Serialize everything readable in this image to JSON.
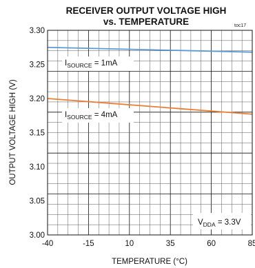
{
  "chart_data": {
    "type": "line",
    "title": "RECEIVER OUTPUT VOLTAGE HIGH",
    "subtitle": "vs. TEMPERATURE",
    "figure_code": "toc17",
    "xlabel": "TEMPERATURE (°C)",
    "ylabel": "OUTPUT VOLTAGE HIGH (V)",
    "xlim": [
      -40,
      85
    ],
    "ylim": [
      3.0,
      3.3
    ],
    "xticks": [
      "-40",
      "-15",
      "10",
      "35",
      "60",
      "85"
    ],
    "yticks": [
      "3.30",
      "3.25",
      "3.20",
      "3.15",
      "3.10",
      "3.05",
      "3.00"
    ],
    "grid": true,
    "series": [
      {
        "label_main": "I",
        "label_sub": "SOURCE",
        "label_rest": " = 1mA",
        "color": "#5b9bd5",
        "x": [
          -40,
          85
        ],
        "y": [
          3.275,
          3.268
        ]
      },
      {
        "label_main": "I",
        "label_sub": "SOURCE",
        "label_rest": " = 4mA",
        "color": "#ed7d31",
        "x": [
          -40,
          85
        ],
        "y": [
          3.2,
          3.177
        ]
      }
    ],
    "condition": {
      "main": "V",
      "sub": "DDA",
      "rest": " = 3.3V"
    }
  }
}
